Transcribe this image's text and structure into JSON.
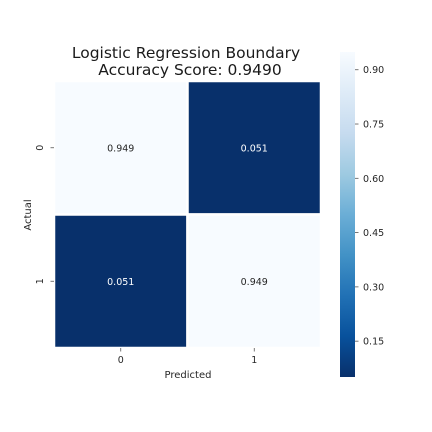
{
  "chart_data": {
    "type": "heatmap",
    "title_lines": [
      "Logistic Regression Boundary",
      "Accuracy Score: 0.9490"
    ],
    "xlabel": "Predicted",
    "ylabel": "Actual",
    "x_categories": [
      "0",
      "1"
    ],
    "y_categories": [
      "0",
      "1"
    ],
    "values": [
      [
        0.949,
        0.051
      ],
      [
        0.051,
        0.949
      ]
    ],
    "cell_labels": [
      [
        "0.949",
        "0.051"
      ],
      [
        "0.051",
        "0.949"
      ]
    ],
    "colormap": "Blues_r",
    "color_low": "#08306b",
    "color_high": "#f7fbff",
    "colorbar": {
      "range": [
        0.051,
        0.949
      ],
      "ticks": [
        0.15,
        0.3,
        0.45,
        0.6,
        0.75,
        0.9
      ],
      "tick_labels": [
        "0.15",
        "0.30",
        "0.45",
        "0.60",
        "0.75",
        "0.90"
      ]
    },
    "cell_separator_color": "#ffffff"
  }
}
